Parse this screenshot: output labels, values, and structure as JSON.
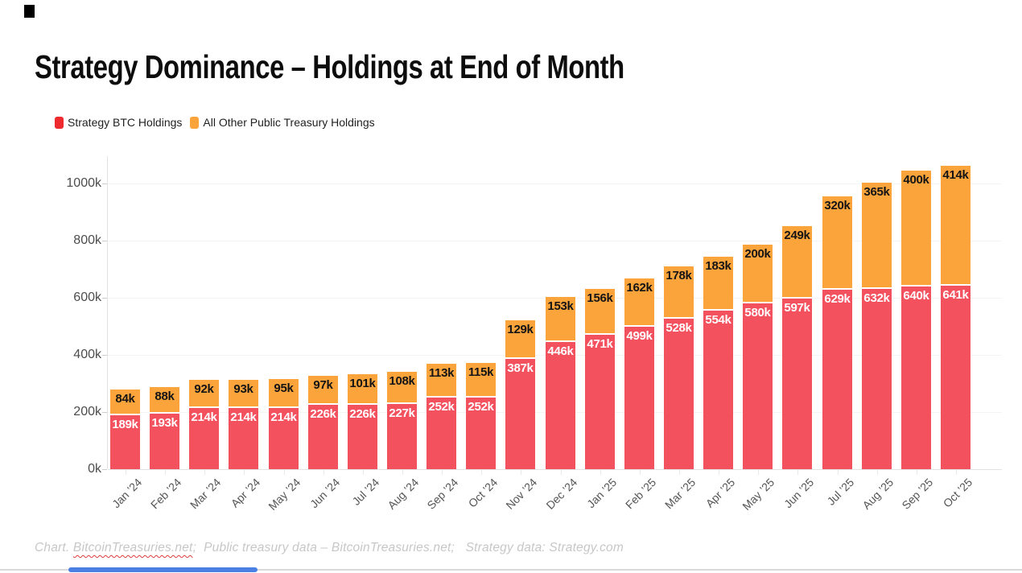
{
  "title": "Strategy Dominance – Holdings at End of Month",
  "legend": {
    "items": [
      {
        "label": "Strategy BTC Holdings",
        "color": "#ee2a2e"
      },
      {
        "label": "All Other Public Treasury Holdings",
        "color": "#fba43c"
      }
    ]
  },
  "chart_data": {
    "type": "bar",
    "stacked": true,
    "title": "Strategy Dominance – Holdings at End of Month",
    "categories": [
      "Jan ’24",
      "Feb ’24",
      "Mar ’24",
      "Apr ’24",
      "May ’24",
      "Jun ’24",
      "Jul ’24",
      "Aug ’24",
      "Sep ’24",
      "Oct ’24",
      "Nov ’24",
      "Dec ’24",
      "Jan ’25",
      "Feb ’25",
      "Mar ’25",
      "Apr ’25",
      "May ’25",
      "Jun ’25",
      "Jul ’25",
      "Aug ’25",
      "Sep ’25",
      "Oct ’25"
    ],
    "series": [
      {
        "name": "Strategy BTC Holdings",
        "color": "#f4515f",
        "label_color": "#ffffff",
        "values": [
          189,
          193,
          214,
          214,
          214,
          226,
          226,
          227,
          252,
          252,
          387,
          446,
          471,
          499,
          528,
          554,
          580,
          597,
          629,
          632,
          640,
          641
        ]
      },
      {
        "name": "All Other Public Treasury Holdings",
        "color": "#fba43c",
        "label_color": "#141414",
        "values": [
          84,
          88,
          92,
          93,
          95,
          97,
          101,
          108,
          113,
          115,
          129,
          153,
          156,
          162,
          178,
          183,
          200,
          249,
          320,
          365,
          400,
          414
        ]
      }
    ],
    "value_suffix": "k",
    "unit": "thousand BTC",
    "yticks": [
      {
        "value": 0,
        "label": "0k"
      },
      {
        "value": 200,
        "label": "200k"
      },
      {
        "value": 400,
        "label": "400k"
      },
      {
        "value": 600,
        "label": "600k"
      },
      {
        "value": 800,
        "label": "800k"
      },
      {
        "value": 1000,
        "label": "1000k"
      }
    ],
    "ylim": [
      0,
      1093
    ],
    "grid": true,
    "legend_position": "top-left",
    "x_label_rotation": -45
  },
  "footer": {
    "prefix": "Chart. ",
    "source_link": "BitcoinTreasuries.net",
    "rest": ";  Public treasury data – BitcoinTreasuries.net;   Strategy data: Strategy.com"
  }
}
